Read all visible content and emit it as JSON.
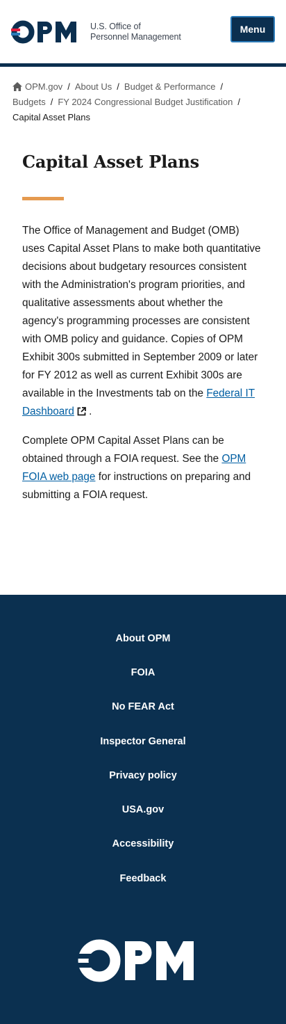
{
  "header": {
    "logo_text": "OPM",
    "logo_sub_line1": "U.S. Office of",
    "logo_sub_line2": "Personnel Management",
    "menu_label": "Menu"
  },
  "breadcrumb": {
    "items": [
      "OPM.gov",
      "About Us",
      "Budget & Performance",
      "Budgets",
      "FY 2024 Congressional Budget Justification"
    ],
    "current": "Capital Asset Plans",
    "separator": "/"
  },
  "main": {
    "title": "Capital Asset Plans",
    "para1_text": "The Office of Management and Budget (OMB) uses Capital Asset Plans to make both quantitative decisions about budgetary resources consistent with the Administration's program priorities, and qualitative assessments about whether the agency's programming processes are consistent with OMB policy and guidance. Copies of OPM Exhibit 300s submitted in September 2009 or later for FY 2012 as well as current Exhibit 300s are available in the Investments tab on the ",
    "para1_link": "Federal IT Dashboard",
    "para1_end": ".",
    "para2_text": "Complete OPM Capital Asset Plans can be obtained through a FOIA request. See the ",
    "para2_link": "OPM FOIA web page",
    "para2_end": " for instructions on preparing and submitting a FOIA request."
  },
  "footer": {
    "links": [
      "About OPM",
      "FOIA",
      "No FEAR Act",
      "Inspector General",
      "Privacy policy",
      "USA.gov",
      "Accessibility",
      "Feedback"
    ],
    "logo_text": "OPM"
  },
  "colors": {
    "navy": "#0b2f4f",
    "footer_bg": "#0b3050",
    "accent_orange": "#e59a4f",
    "link_blue": "#005ea2",
    "logo_red": "#e31c3d",
    "logo_blue": "#2a7ab8"
  },
  "icons": [
    "home-icon",
    "external-link-icon",
    "opm-logo"
  ]
}
